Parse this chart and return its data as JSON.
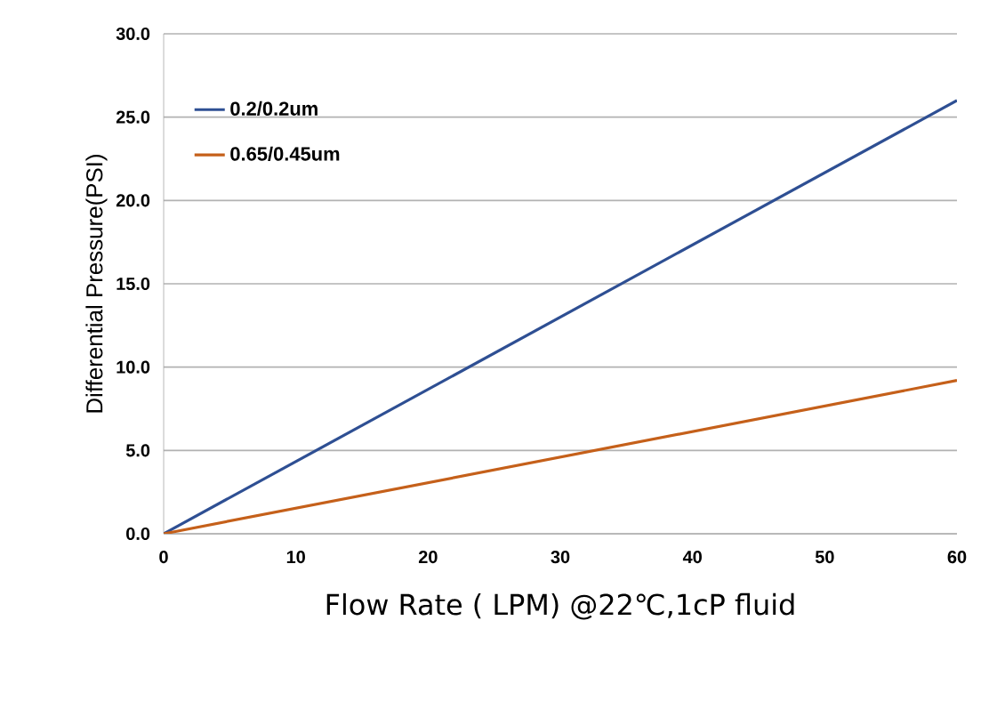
{
  "chart_data": {
    "type": "line",
    "xlabel": "Flow Rate ( LPM) @22℃,1cP fluid",
    "ylabel": "Differential Pressure(PSI)",
    "x": [
      0,
      60
    ],
    "series": [
      {
        "name": "0.2/0.2um",
        "color": "#2e4f93",
        "values": [
          0,
          26.0
        ]
      },
      {
        "name": "0.65/0.45um",
        "color": "#c5601a",
        "values": [
          0,
          9.2
        ]
      }
    ],
    "xlim": [
      0,
      60
    ],
    "ylim": [
      0,
      30
    ],
    "xticks": [
      0,
      10,
      20,
      30,
      40,
      50,
      60
    ],
    "yticks": [
      {
        "value": 0,
        "label": "0.0"
      },
      {
        "value": 5,
        "label": "5.0"
      },
      {
        "value": 10,
        "label": "10.0"
      },
      {
        "value": 15,
        "label": "15.0"
      },
      {
        "value": 20,
        "label": "20.0"
      },
      {
        "value": 25,
        "label": "25.0"
      },
      {
        "value": 30,
        "label": "30.0"
      }
    ],
    "grid": "y",
    "legend": "top left",
    "marker": "none",
    "line_style": "solid"
  }
}
